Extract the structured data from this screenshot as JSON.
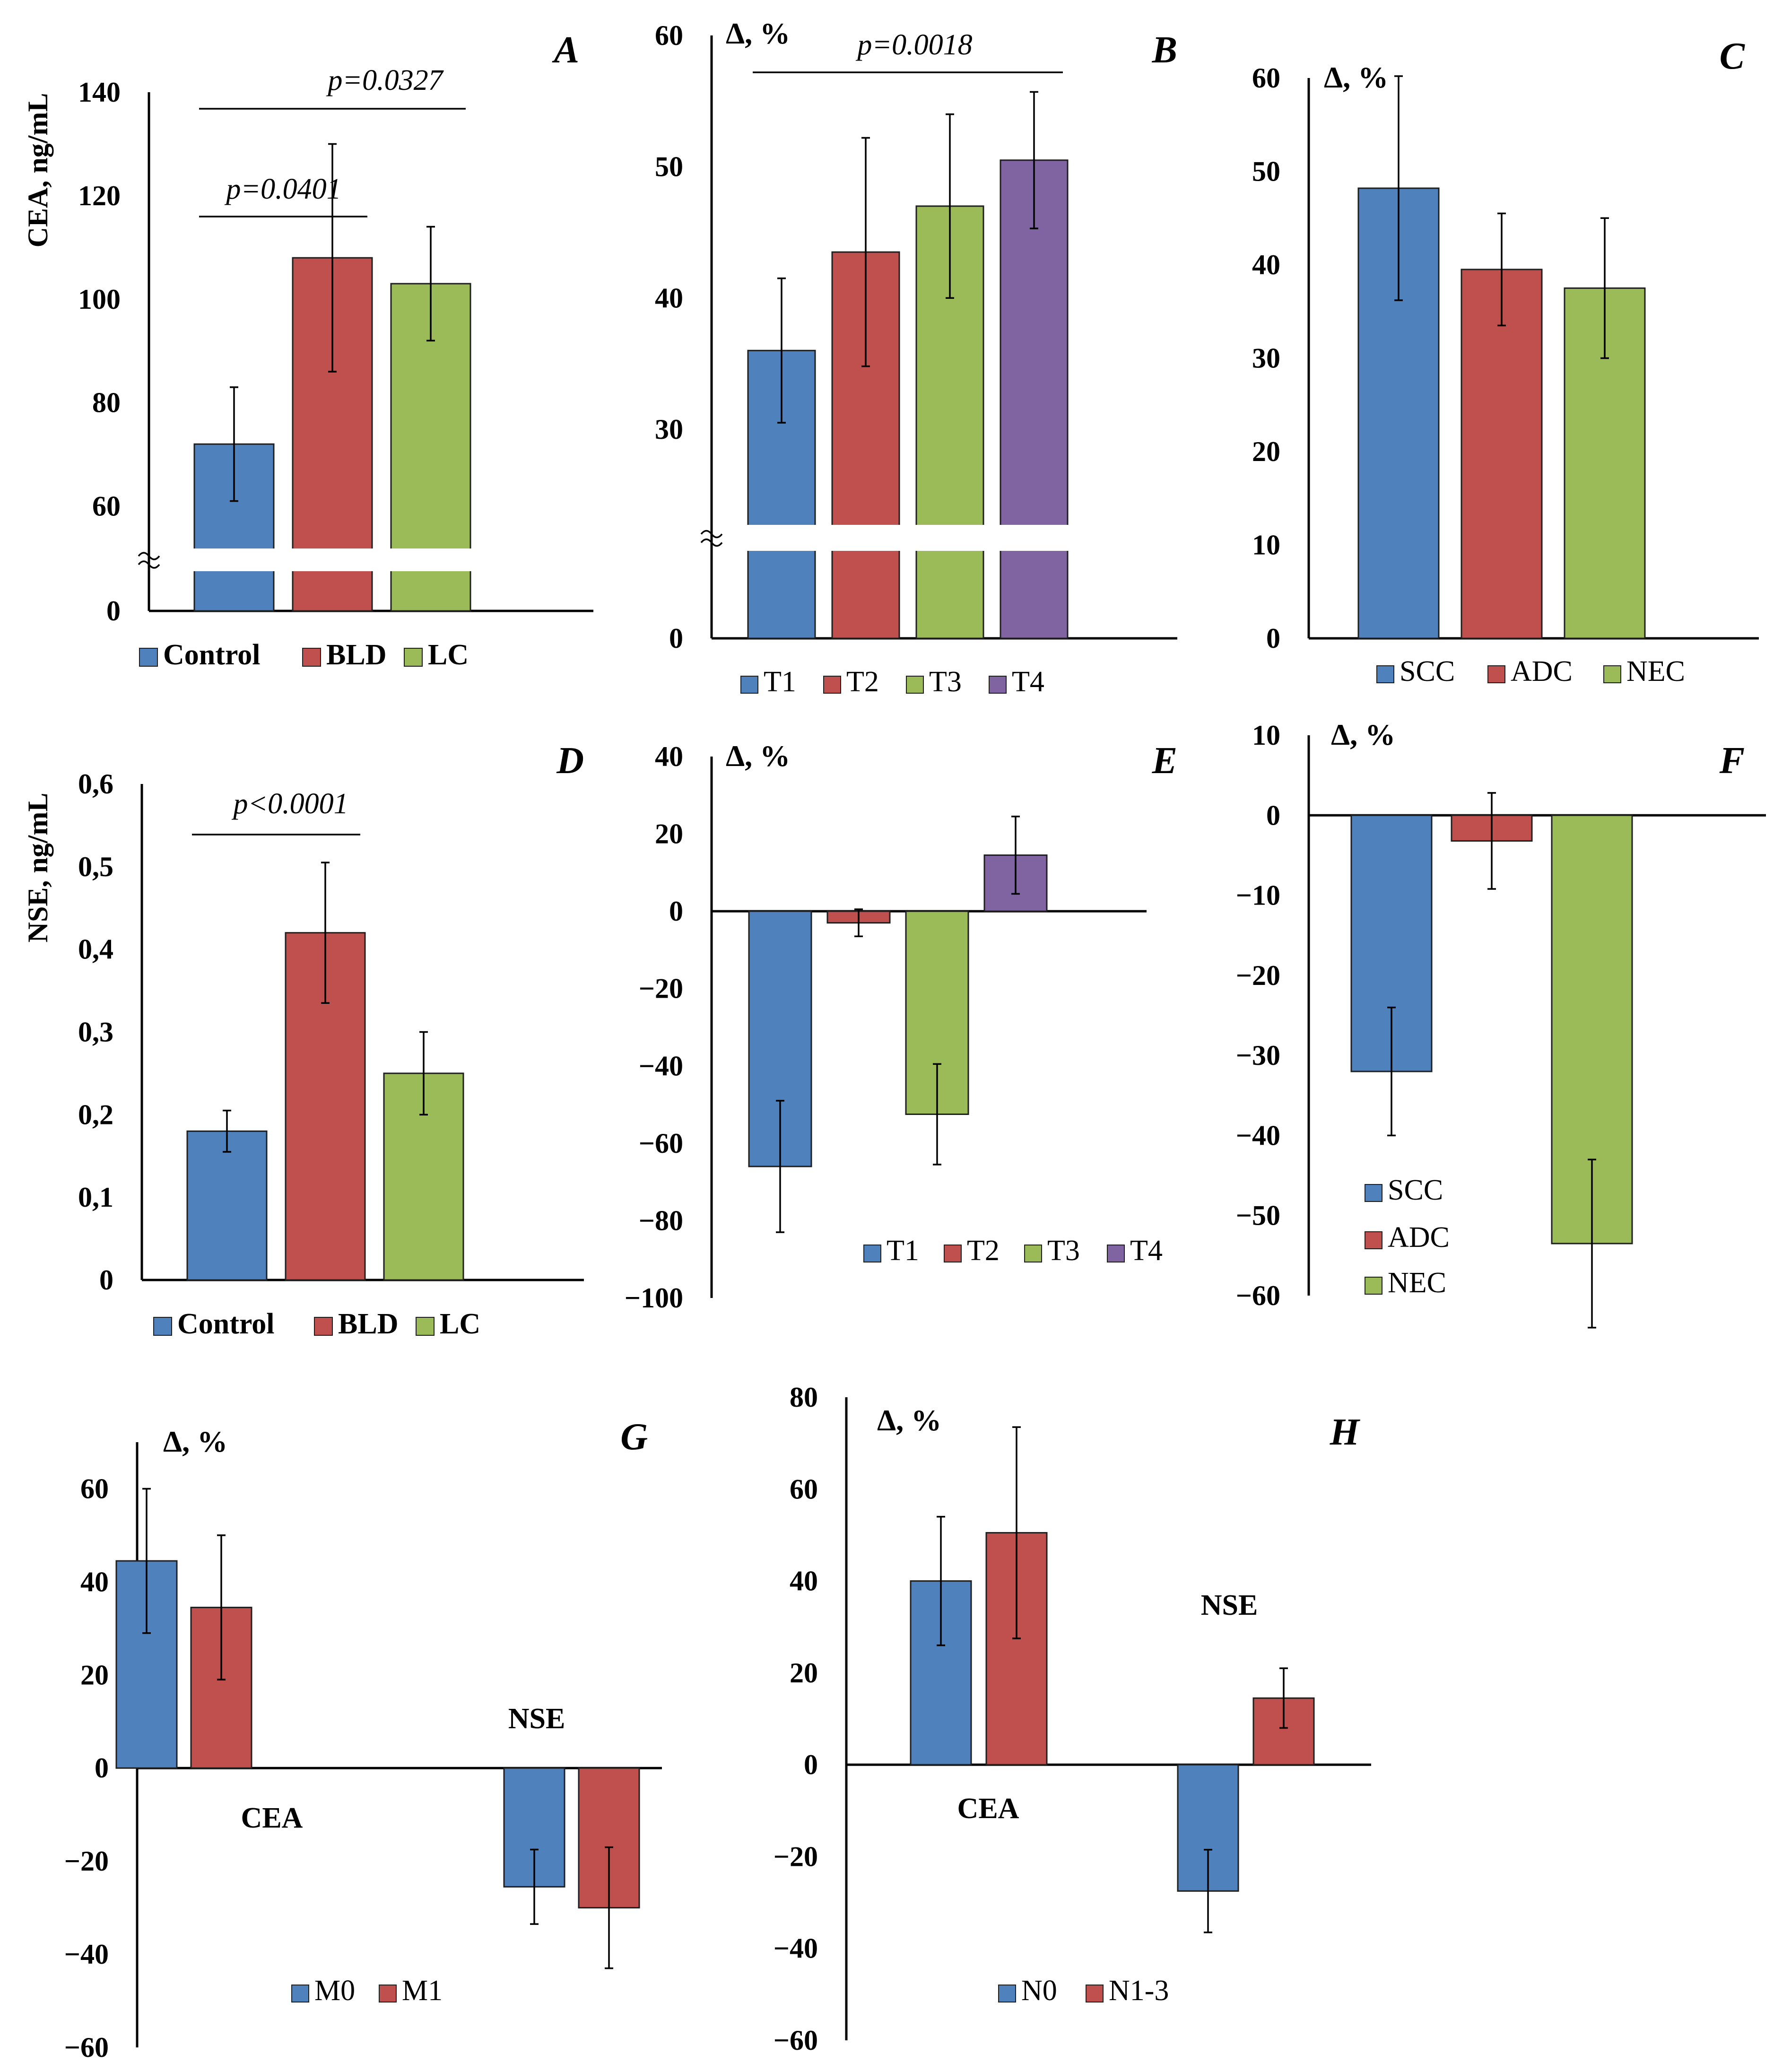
{
  "colors": {
    "blue": "#4F81BD",
    "red": "#C0504D",
    "green": "#9BBB59",
    "purple": "#8064A2",
    "axis": "#000000"
  },
  "chart_data": [
    {
      "id": "A",
      "type": "bar",
      "panel_label": "A",
      "ylabel": "CEA, ng/mL",
      "categories": [
        "Control",
        "BLD",
        "LC"
      ],
      "values": [
        72,
        108,
        103
      ],
      "errors": [
        11,
        22,
        11
      ],
      "colors": [
        "blue",
        "red",
        "green"
      ],
      "ylim": [
        0,
        140
      ],
      "ymin_break": 50,
      "ytick_values": [
        140,
        120,
        100,
        80,
        60,
        0
      ],
      "ytick_labels": [
        "140",
        "120",
        "100",
        "80",
        "60",
        "0"
      ],
      "legend": [
        {
          "label": "Control",
          "color": "blue"
        },
        {
          "label": "BLD",
          "color": "red"
        },
        {
          "label": "LC",
          "color": "green"
        }
      ],
      "legend_bold": true,
      "axis_break": true,
      "annotations": [
        {
          "text": "p=0.0401",
          "from": 0,
          "to": 1
        },
        {
          "text": "p=0.0327",
          "from": 0,
          "to": 2
        }
      ]
    },
    {
      "id": "B",
      "type": "bar",
      "panel_label": "B",
      "ylabel": "Δ, %",
      "categories": [
        "T1",
        "T2",
        "T3",
        "T4"
      ],
      "values": [
        36,
        43.5,
        47,
        50.5
      ],
      "errors": [
        5.5,
        8.7,
        7,
        5.2
      ],
      "colors": [
        "blue",
        "red",
        "green",
        "purple"
      ],
      "ylim": [
        0,
        60
      ],
      "ymin_break": 22,
      "ytick_values": [
        60,
        50,
        40,
        30,
        0
      ],
      "ytick_labels": [
        "60",
        "50",
        "40",
        "30",
        "0"
      ],
      "legend": [
        {
          "label": "T1",
          "color": "blue"
        },
        {
          "label": "T2",
          "color": "red"
        },
        {
          "label": "T3",
          "color": "green"
        },
        {
          "label": "T4",
          "color": "purple"
        }
      ],
      "legend_bold": false,
      "axis_break": true,
      "annotations": [
        {
          "text": "p=0.0018",
          "from": 0,
          "to": 3
        }
      ]
    },
    {
      "id": "C",
      "type": "bar",
      "panel_label": "C",
      "ylabel": "Δ, %",
      "categories": [
        "SCC",
        "ADC",
        "NEC"
      ],
      "values": [
        48.2,
        39.5,
        37.5
      ],
      "errors": [
        12,
        6,
        7.5
      ],
      "colors": [
        "blue",
        "red",
        "green"
      ],
      "ylim": [
        0,
        60
      ],
      "ytick_values": [
        60,
        50,
        40,
        30,
        20,
        10,
        0
      ],
      "ytick_labels": [
        "60",
        "50",
        "40",
        "30",
        "20",
        "10",
        "0"
      ],
      "legend": [
        {
          "label": "SCC",
          "color": "blue"
        },
        {
          "label": "ADC",
          "color": "red"
        },
        {
          "label": "NEC",
          "color": "green"
        }
      ],
      "legend_bold": false
    },
    {
      "id": "D",
      "type": "bar",
      "panel_label": "D",
      "ylabel": "NSE, ng/mL",
      "categories": [
        "Control",
        "BLD",
        "LC"
      ],
      "values": [
        0.18,
        0.42,
        0.25
      ],
      "errors": [
        0.025,
        0.085,
        0.05
      ],
      "colors": [
        "blue",
        "red",
        "green"
      ],
      "ylim": [
        0,
        0.6
      ],
      "ytick_values": [
        0.6,
        0.5,
        0.4,
        0.3,
        0.2,
        0.1,
        0
      ],
      "ytick_labels": [
        "0,6",
        "0,5",
        "0,4",
        "0,3",
        "0,2",
        "0,1",
        "0"
      ],
      "legend": [
        {
          "label": "Control",
          "color": "blue"
        },
        {
          "label": "BLD",
          "color": "red"
        },
        {
          "label": "LC",
          "color": "green"
        }
      ],
      "legend_bold": true,
      "annotations": [
        {
          "text": "p<0.0001",
          "from": 0,
          "to": 1
        }
      ]
    },
    {
      "id": "E",
      "type": "bar",
      "panel_label": "E",
      "ylabel": "Δ, %",
      "categories": [
        "T1",
        "T2",
        "T3",
        "T4"
      ],
      "values": [
        -66,
        -3,
        -52.5,
        14.5
      ],
      "errors": [
        17,
        3.5,
        13,
        10
      ],
      "colors": [
        "blue",
        "red",
        "green",
        "purple"
      ],
      "ylim": [
        -100,
        40
      ],
      "ytick_values": [
        40,
        20,
        0,
        -20,
        -40,
        -60,
        -80,
        -100
      ],
      "ytick_labels": [
        "40",
        "20",
        "0",
        "−20",
        "−40",
        "−60",
        "−80",
        "−100"
      ],
      "legend": [
        {
          "label": "T1",
          "color": "blue"
        },
        {
          "label": "T2",
          "color": "red"
        },
        {
          "label": "T3",
          "color": "green"
        },
        {
          "label": "T4",
          "color": "purple"
        }
      ],
      "legend_bold": false
    },
    {
      "id": "F",
      "type": "bar",
      "panel_label": "F",
      "ylabel": "Δ, %",
      "categories": [
        "SCC",
        "ADC",
        "NEC"
      ],
      "values": [
        -32,
        -3.2,
        -53.5
      ],
      "errors": [
        8,
        6,
        10.5
      ],
      "colors": [
        "blue",
        "red",
        "green"
      ],
      "ylim": [
        -60,
        10
      ],
      "ytick_values": [
        10,
        0,
        -10,
        -20,
        -30,
        -40,
        -50,
        -60
      ],
      "ytick_labels": [
        "10",
        "0",
        "−10",
        "−20",
        "−30",
        "−40",
        "−50",
        "−60"
      ],
      "legend": [
        {
          "label": "SCC",
          "color": "blue"
        },
        {
          "label": "ADC",
          "color": "red"
        },
        {
          "label": "NEC",
          "color": "green"
        }
      ],
      "legend_bold": false
    },
    {
      "id": "G",
      "type": "bar",
      "panel_label": "G",
      "ylabel": "Δ, %",
      "categories": [
        "CEA",
        "NSE"
      ],
      "series": [
        {
          "name": "M0",
          "color": "blue",
          "values": [
            44.5,
            -25.5
          ],
          "errors": [
            15.5,
            8
          ]
        },
        {
          "name": "M1",
          "color": "red",
          "values": [
            34.5,
            -30
          ],
          "errors": [
            15.5,
            13
          ]
        }
      ],
      "ylim": [
        -60,
        70
      ],
      "ytick_values": [
        60,
        40,
        20,
        0,
        -20,
        -40,
        -60
      ],
      "ytick_labels": [
        "60",
        "40",
        "20",
        "0",
        "−20",
        "−40",
        "−60"
      ],
      "legend": [
        {
          "label": "M0",
          "color": "blue"
        },
        {
          "label": "M1",
          "color": "red"
        }
      ],
      "legend_bold": false
    },
    {
      "id": "H",
      "type": "bar",
      "panel_label": "H",
      "ylabel": "Δ, %",
      "categories": [
        "CEA",
        "NSE"
      ],
      "series": [
        {
          "name": "N0",
          "color": "blue",
          "values": [
            40,
            -27.5
          ],
          "errors": [
            14,
            9
          ]
        },
        {
          "name": "N1-3",
          "color": "red",
          "values": [
            50.5,
            14.5
          ],
          "errors": [
            23,
            6.5
          ]
        }
      ],
      "ylim": [
        -60,
        80
      ],
      "ytick_values": [
        80,
        60,
        40,
        20,
        0,
        -20,
        -40,
        -60
      ],
      "ytick_labels": [
        "80",
        "60",
        "40",
        "20",
        "0",
        "−20",
        "−40",
        "−60"
      ],
      "legend": [
        {
          "label": "N0",
          "color": "blue"
        },
        {
          "label": "N1-3",
          "color": "red"
        }
      ],
      "legend_bold": false
    }
  ]
}
